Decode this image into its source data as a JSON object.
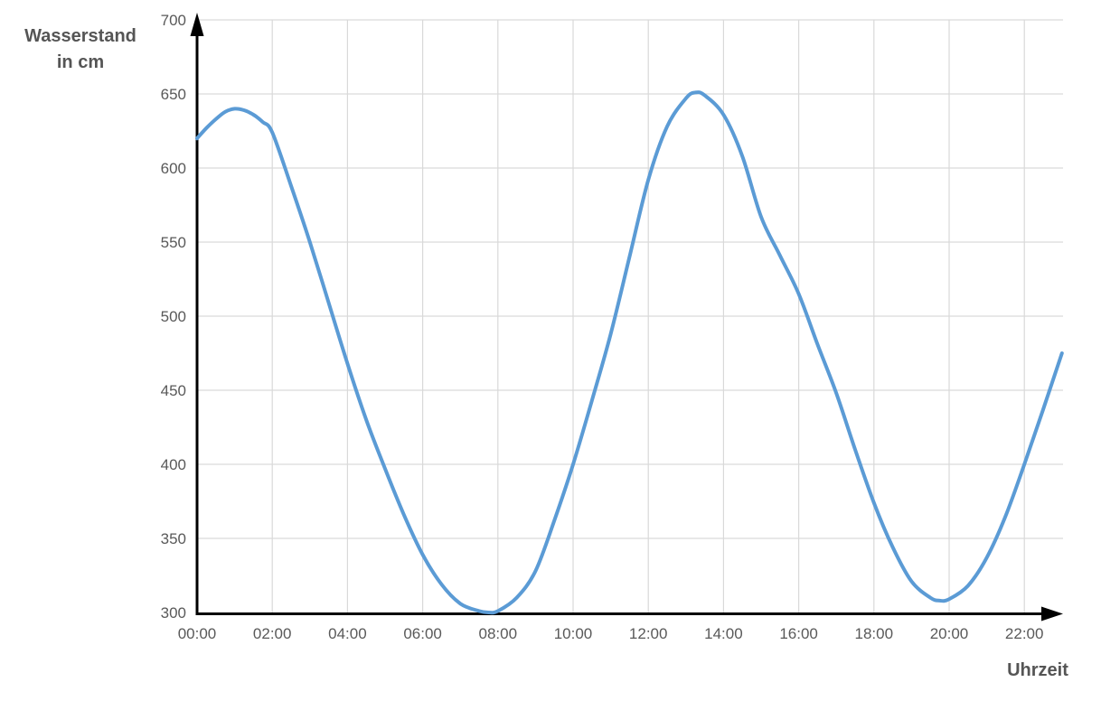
{
  "chart": {
    "y_axis_title_line1": "Wasserstand",
    "y_axis_title_line2": "in cm",
    "x_axis_title": "Uhrzeit"
  },
  "colors": {
    "curve": "#5B9BD5",
    "grid": "#D9D9D9",
    "axis": "#000000",
    "tick_label": "#595959",
    "title": "#555555"
  },
  "chart_data": {
    "type": "line",
    "title": "",
    "xlabel": "Uhrzeit",
    "ylabel": "Wasserstand in cm",
    "grid": true,
    "legend": "none",
    "ylim": [
      300,
      700
    ],
    "y_ticks": [
      300,
      350,
      400,
      450,
      500,
      550,
      600,
      650,
      700
    ],
    "xlim_hours": [
      0,
      23.05
    ],
    "x_ticks": [
      {
        "hour": 0,
        "label": "00:00"
      },
      {
        "hour": 2,
        "label": "02:00"
      },
      {
        "hour": 4,
        "label": "04:00"
      },
      {
        "hour": 6,
        "label": "06:00"
      },
      {
        "hour": 8,
        "label": "08:00"
      },
      {
        "hour": 10,
        "label": "10:00"
      },
      {
        "hour": 12,
        "label": "12:00"
      },
      {
        "hour": 14,
        "label": "14:00"
      },
      {
        "hour": 16,
        "label": "16:00"
      },
      {
        "hour": 18,
        "label": "18:00"
      },
      {
        "hour": 20,
        "label": "20:00"
      },
      {
        "hour": 22,
        "label": "22:00"
      }
    ],
    "series": [
      {
        "name": "Wasserstand",
        "color": "#5B9BD5",
        "points_hour_cm": [
          [
            0,
            620
          ],
          [
            0.25,
            627
          ],
          [
            0.5,
            633
          ],
          [
            0.75,
            638
          ],
          [
            1,
            640
          ],
          [
            1.25,
            639
          ],
          [
            1.5,
            636
          ],
          [
            1.75,
            631
          ],
          [
            2,
            624
          ],
          [
            2.5,
            588
          ],
          [
            3,
            550
          ],
          [
            3.5,
            509
          ],
          [
            4,
            468
          ],
          [
            4.5,
            430
          ],
          [
            5,
            397
          ],
          [
            5.5,
            366
          ],
          [
            6,
            339
          ],
          [
            6.5,
            319
          ],
          [
            7,
            306
          ],
          [
            7.5,
            301
          ],
          [
            7.75,
            300
          ],
          [
            8,
            301
          ],
          [
            8.5,
            310
          ],
          [
            9,
            328
          ],
          [
            9.5,
            362
          ],
          [
            10,
            400
          ],
          [
            10.5,
            443
          ],
          [
            11,
            488
          ],
          [
            11.5,
            540
          ],
          [
            12,
            592
          ],
          [
            12.5,
            628
          ],
          [
            13,
            647
          ],
          [
            13.25,
            651
          ],
          [
            13.5,
            649
          ],
          [
            14,
            636
          ],
          [
            14.5,
            608
          ],
          [
            15,
            567
          ],
          [
            15.5,
            541
          ],
          [
            16,
            515
          ],
          [
            16.5,
            481
          ],
          [
            17,
            448
          ],
          [
            17.5,
            410
          ],
          [
            18,
            374
          ],
          [
            18.5,
            344
          ],
          [
            19,
            321
          ],
          [
            19.5,
            310
          ],
          [
            19.75,
            308
          ],
          [
            20,
            309
          ],
          [
            20.5,
            318
          ],
          [
            21,
            337
          ],
          [
            21.5,
            365
          ],
          [
            22,
            400
          ],
          [
            22.5,
            437
          ],
          [
            23,
            475
          ]
        ]
      }
    ],
    "extremes_read_from_chart": {
      "high_tides": [
        {
          "time": "01:00",
          "cm": 640
        },
        {
          "time": "13:15",
          "cm": 651
        }
      ],
      "low_tides": [
        {
          "time": "07:50",
          "cm": 300
        },
        {
          "time": "19:45",
          "cm": 308
        }
      ]
    }
  }
}
